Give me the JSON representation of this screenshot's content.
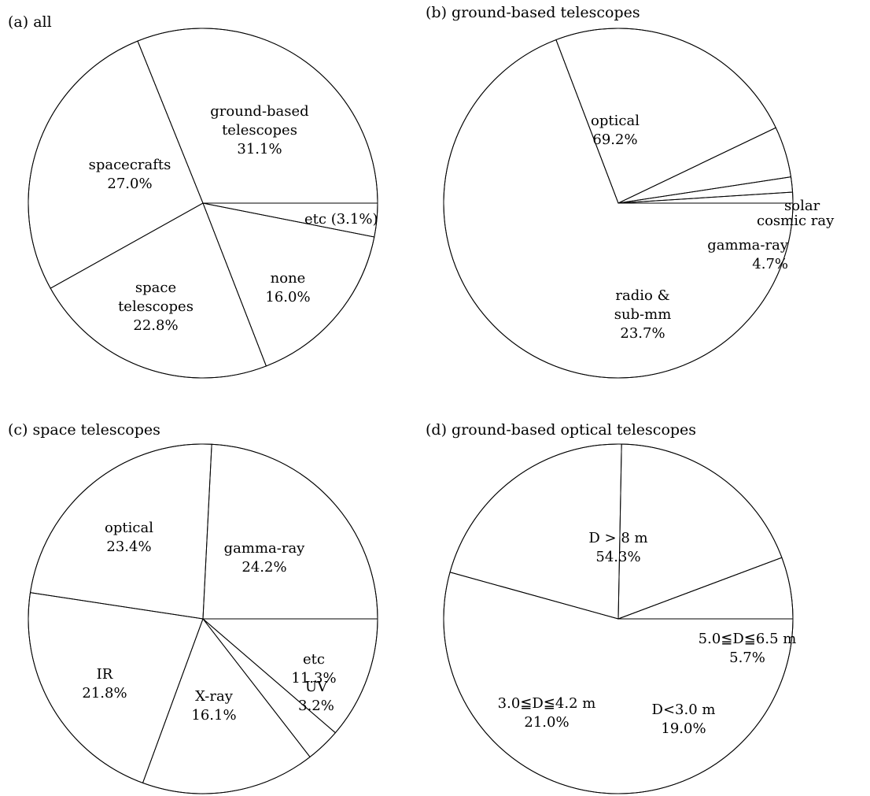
{
  "colors": {
    "ink": "#000000",
    "background": "#ffffff"
  },
  "chart_data": [
    {
      "type": "pie",
      "title": "(a) all",
      "slices": [
        {
          "label": [
            "ground-based",
            "telescopes"
          ],
          "pct_label": "31.1%",
          "value": 31.1
        },
        {
          "label": [
            "spacecrafts"
          ],
          "pct_label": "27.0%",
          "value": 27.0
        },
        {
          "label": [
            "space",
            "telescopes"
          ],
          "pct_label": "22.8%",
          "value": 22.8
        },
        {
          "label": [
            "none"
          ],
          "pct_label": "16.0%",
          "value": 16.0
        },
        {
          "label": [
            "etc (3.1%)"
          ],
          "pct_label": "",
          "value": 3.1
        }
      ]
    },
    {
      "type": "pie",
      "title": "(b) ground-based telescopes",
      "slices": [
        {
          "label": [
            "optical"
          ],
          "pct_label": "69.2%",
          "value": 69.2
        },
        {
          "label": [
            "radio &",
            "sub-mm"
          ],
          "pct_label": "23.7%",
          "value": 23.7
        },
        {
          "label": [
            "gamma-ray"
          ],
          "pct_label": "4.7%",
          "value": 4.7
        },
        {
          "label": [
            "cosmic ray"
          ],
          "pct_label": "",
          "value": 1.4
        },
        {
          "label": [
            "solar"
          ],
          "pct_label": "",
          "value": 1.0
        }
      ]
    },
    {
      "type": "pie",
      "title": "(c) space telescopes",
      "slices": [
        {
          "label": [
            "gamma-ray"
          ],
          "pct_label": "24.2%",
          "value": 24.2
        },
        {
          "label": [
            "optical"
          ],
          "pct_label": "23.4%",
          "value": 23.4
        },
        {
          "label": [
            "IR"
          ],
          "pct_label": "21.8%",
          "value": 21.8
        },
        {
          "label": [
            "X-ray"
          ],
          "pct_label": "16.1%",
          "value": 16.1
        },
        {
          "label": [
            "UV"
          ],
          "pct_label": "3.2%",
          "value": 3.2
        },
        {
          "label": [
            "etc"
          ],
          "pct_label": "11.3%",
          "value": 11.3
        }
      ]
    },
    {
      "type": "pie",
      "title": "(d) ground-based optical telescopes",
      "slices": [
        {
          "label": [
            "D > 8 m"
          ],
          "pct_label": "54.3%",
          "value": 54.3
        },
        {
          "label": [
            "3.0≦D≦4.2 m"
          ],
          "pct_label": "21.0%",
          "value": 21.0
        },
        {
          "label": [
            "D<3.0 m"
          ],
          "pct_label": "19.0%",
          "value": 19.0
        },
        {
          "label": [
            "5.0≦D≦6.5 m"
          ],
          "pct_label": "5.7%",
          "value": 5.7
        }
      ]
    }
  ]
}
